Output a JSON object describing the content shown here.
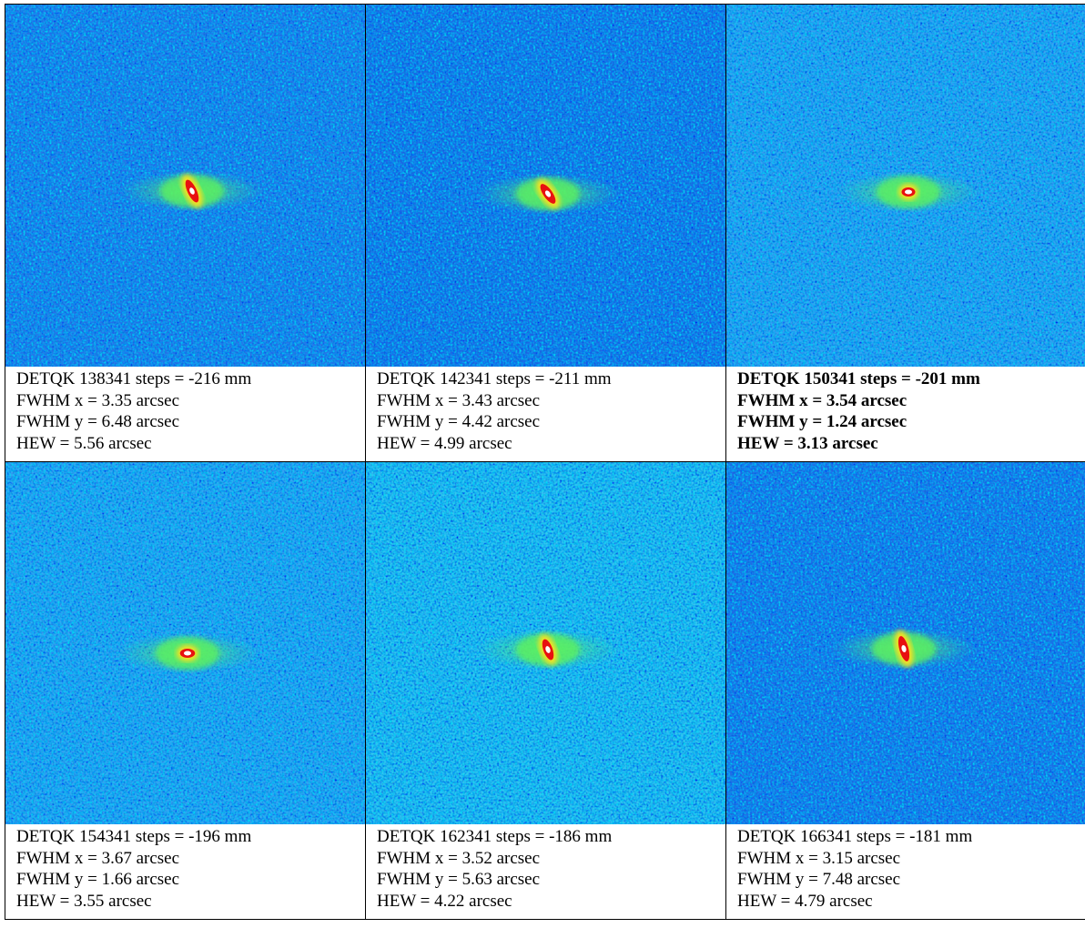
{
  "panels": [
    {
      "emphasized": false,
      "lines": [
        "DETQK 138341 steps = -216 mm",
        "FWHM x = 3.35 arcsec",
        "FWHM y = 6.48 arcsec",
        "HEW = 5.56 arcsec"
      ]
    },
    {
      "emphasized": false,
      "lines": [
        "DETQK 142341 steps = -211 mm",
        "FWHM x = 3.43 arcsec",
        "FWHM y = 4.42 arcsec",
        "HEW = 4.99 arcsec"
      ]
    },
    {
      "emphasized": true,
      "lines": [
        "DETQK 150341 steps = -201 mm",
        "FWHM x = 3.54 arcsec",
        "FWHM y = 1.24 arcsec",
        "HEW = 3.13 arcsec"
      ]
    },
    {
      "emphasized": false,
      "lines": [
        "DETQK 154341 steps = -196 mm",
        "FWHM x = 3.67 arcsec",
        "FWHM y = 1.66 arcsec",
        "HEW = 3.55 arcsec"
      ]
    },
    {
      "emphasized": false,
      "lines": [
        "DETQK 162341 steps = -186 mm",
        "FWHM x = 3.52 arcsec",
        "FWHM y = 5.63 arcsec",
        "HEW = 4.22 arcsec"
      ]
    },
    {
      "emphasized": false,
      "lines": [
        "DETQK 166341 steps = -181 mm",
        "FWHM x = 3.15 arcsec",
        "FWHM y = 7.48 arcsec",
        "HEW = 4.79 arcsec"
      ]
    }
  ]
}
